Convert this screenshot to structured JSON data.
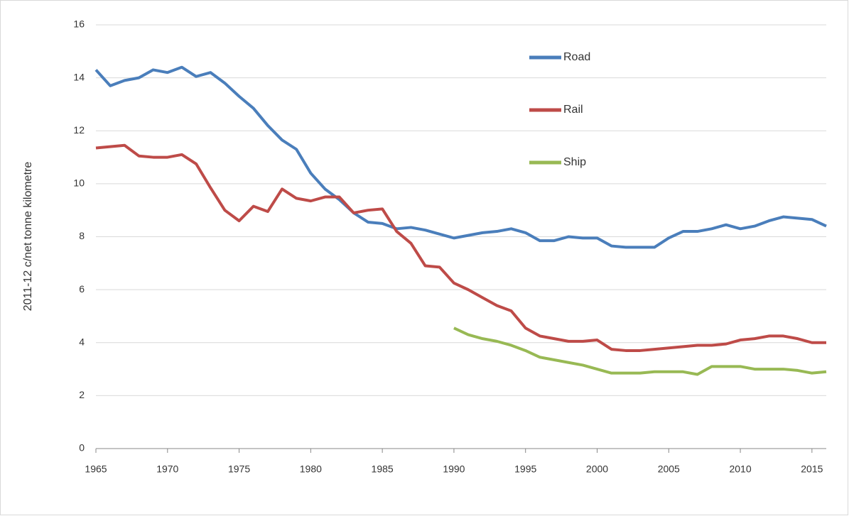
{
  "chart_data": {
    "type": "line",
    "ylabel": "2011-12 c/net tonne kilometre",
    "x": [
      1965,
      1966,
      1967,
      1968,
      1969,
      1970,
      1971,
      1972,
      1973,
      1974,
      1975,
      1976,
      1977,
      1978,
      1979,
      1980,
      1981,
      1982,
      1983,
      1984,
      1985,
      1986,
      1987,
      1988,
      1989,
      1990,
      1991,
      1992,
      1993,
      1994,
      1995,
      1996,
      1997,
      1998,
      1999,
      2000,
      2001,
      2002,
      2003,
      2004,
      2005,
      2006,
      2007,
      2008,
      2009,
      2010,
      2011,
      2012,
      2013,
      2014,
      2015,
      2016
    ],
    "series": [
      {
        "name": "Road",
        "color": "#4a7ebb",
        "values": [
          14.3,
          13.7,
          13.9,
          14.0,
          14.3,
          14.2,
          14.4,
          14.05,
          14.2,
          13.8,
          13.3,
          12.85,
          12.2,
          11.65,
          11.3,
          10.4,
          9.8,
          9.4,
          8.9,
          8.55,
          8.5,
          8.3,
          8.35,
          8.25,
          8.1,
          7.95,
          8.05,
          8.15,
          8.2,
          8.3,
          8.15,
          7.85,
          7.85,
          8.0,
          7.95,
          7.95,
          7.65,
          7.6,
          7.6,
          7.6,
          7.95,
          8.2,
          8.2,
          8.3,
          8.45,
          8.3,
          8.4,
          8.6,
          8.75,
          8.7,
          8.65,
          8.4
        ]
      },
      {
        "name": "Rail",
        "color": "#be4b48",
        "values": [
          11.35,
          11.4,
          11.45,
          11.05,
          11.0,
          11.0,
          11.1,
          10.75,
          9.85,
          9.0,
          8.6,
          9.15,
          8.95,
          9.8,
          9.45,
          9.35,
          9.5,
          9.5,
          8.9,
          9.0,
          9.05,
          8.2,
          7.75,
          6.9,
          6.85,
          6.25,
          6.0,
          5.7,
          5.4,
          5.2,
          4.55,
          4.25,
          4.15,
          4.05,
          4.05,
          4.1,
          3.75,
          3.7,
          3.7,
          3.75,
          3.8,
          3.85,
          3.9,
          3.9,
          3.95,
          4.1,
          4.15,
          4.25,
          4.25,
          4.15,
          4.0,
          4.0
        ]
      },
      {
        "name": "Ship",
        "color": "#98b954",
        "values": [
          null,
          null,
          null,
          null,
          null,
          null,
          null,
          null,
          null,
          null,
          null,
          null,
          null,
          null,
          null,
          null,
          null,
          null,
          null,
          null,
          null,
          null,
          null,
          null,
          null,
          4.55,
          4.3,
          4.15,
          4.05,
          3.9,
          3.7,
          3.45,
          3.35,
          3.25,
          3.15,
          3.0,
          2.85,
          2.85,
          2.85,
          2.9,
          2.9,
          2.9,
          2.8,
          3.1,
          3.1,
          3.1,
          3.0,
          3.0,
          3.0,
          2.95,
          2.85,
          2.9
        ]
      }
    ],
    "xlim": [
      1965,
      2016
    ],
    "xticks": [
      1965,
      1970,
      1975,
      1980,
      1985,
      1990,
      1995,
      2000,
      2005,
      2010,
      2015
    ],
    "ylim": [
      0,
      16
    ],
    "yticks": [
      0,
      2,
      4,
      6,
      8,
      10,
      12,
      14,
      16
    ],
    "grid": true,
    "legend": "top"
  }
}
